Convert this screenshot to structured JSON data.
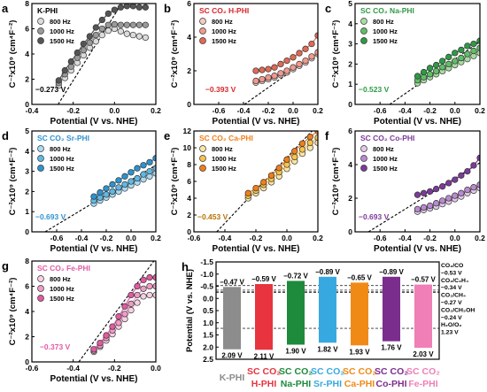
{
  "colors": {
    "gray": [
      "#dcdcdc",
      "#9a9a9a",
      "#555555"
    ],
    "red": [
      "#f6c9c2",
      "#f09a8c",
      "#e06a56"
    ],
    "green": [
      "#a9dca1",
      "#5fbf67",
      "#2f9a45"
    ],
    "blue": [
      "#a9dcf4",
      "#5fb9e6",
      "#2d93cf"
    ],
    "orange": [
      "#fbe5a7",
      "#f6c34c",
      "#ef7f1a"
    ],
    "purple": [
      "#e3c9ea",
      "#b98ad0",
      "#7c3a9a"
    ],
    "pink": [
      "#f8d0e3",
      "#ef9cc6",
      "#e25aa2"
    ]
  },
  "panels": [
    {
      "letter": "a",
      "title": "K-PHI",
      "title_color": "#000000",
      "color": "gray",
      "ylim": [
        0,
        8
      ],
      "yticks": [
        "0",
        "2",
        "4",
        "6",
        "8"
      ],
      "xlim": [
        -0.4,
        0.2
      ],
      "xticks": [
        "-0.4",
        "-0.2",
        "0.0",
        "0.2"
      ],
      "ylabel": "C⁻²x10⁹ (cm⁴F⁻²)",
      "xlabel": "Potential (V vs. NHE)",
      "legend": [
        "800 Hz",
        "1000 Hz",
        "1500 Hz"
      ],
      "intercept_label": "−0.273 V",
      "intercept_color": "#000000",
      "chart_data": {
        "type": "scatter",
        "x": [
          -0.27,
          -0.24,
          -0.21,
          -0.18,
          -0.15,
          -0.12,
          -0.09,
          -0.06,
          -0.03,
          0.0,
          0.03,
          0.06,
          0.09,
          0.12,
          0.15
        ],
        "series": [
          {
            "name": "800 Hz",
            "values": [
              1.5,
              2.1,
              2.7,
              3.3,
              3.9,
              4.5,
              5.0,
              5.5,
              5.85,
              6.0,
              5.8,
              5.6,
              5.5,
              5.4,
              5.3
            ]
          },
          {
            "name": "1000 Hz",
            "values": [
              1.7,
              2.4,
              3.0,
              3.7,
              4.3,
              4.9,
              5.5,
              6.0,
              6.3,
              6.35,
              6.3,
              6.3,
              6.3,
              6.3,
              6.3
            ]
          },
          {
            "name": "1500 Hz",
            "values": [
              1.9,
              2.7,
              3.4,
              4.1,
              4.8,
              5.4,
              6.1,
              6.7,
              7.2,
              7.5,
              7.7,
              7.8,
              7.8,
              7.7,
              7.7
            ]
          }
        ],
        "fit": {
          "x0": -0.273,
          "slope": 26
        }
      }
    },
    {
      "letter": "b",
      "title": "SC CO₂ H-PHI",
      "title_color": "#d8262a",
      "color": "red",
      "ylim": [
        0,
        6
      ],
      "yticks": [
        "0",
        "2",
        "4",
        "6"
      ],
      "xlim": [
        -0.8,
        0.2
      ],
      "xticks": [
        "-0.6",
        "-0.4",
        "-0.2",
        "0.0",
        "0.2"
      ],
      "ylabel": "C⁻²x10⁹ (cm⁴F⁻²)",
      "xlabel": "Potential (V vs. NHE)",
      "legend": [
        "800 Hz",
        "1000 Hz",
        "1500 Hz"
      ],
      "intercept_label": "−0.393 V",
      "intercept_color": "#d8262a",
      "chart_data": {
        "type": "scatter",
        "x": [
          -0.3,
          -0.25,
          -0.2,
          -0.15,
          -0.1,
          -0.05,
          0.0,
          0.05,
          0.1,
          0.15,
          0.2
        ],
        "series": [
          {
            "name": "800 Hz",
            "values": [
              1.3,
              1.4,
              1.5,
              1.6,
              1.75,
              1.9,
              2.1,
              2.3,
              2.5,
              2.75,
              3.0
            ]
          },
          {
            "name": "1000 Hz",
            "values": [
              1.4,
              1.5,
              1.6,
              1.7,
              1.85,
              2.0,
              2.2,
              2.4,
              2.6,
              2.85,
              3.1
            ]
          },
          {
            "name": "1500 Hz",
            "values": [
              2.0,
              2.05,
              2.1,
              2.2,
              2.4,
              2.6,
              2.8,
              3.05,
              3.3,
              3.6,
              4.1
            ]
          }
        ],
        "fit": {
          "x0": -0.393,
          "slope": 5.2
        }
      }
    },
    {
      "letter": "c",
      "title": "SC CO₂ Na-PHI",
      "title_color": "#2e9a47",
      "color": "green",
      "ylim": [
        0,
        5
      ],
      "yticks": [
        "0",
        "1",
        "2",
        "3",
        "4",
        "5"
      ],
      "xlim": [
        -0.8,
        0.2
      ],
      "xticks": [
        "-0.6",
        "-0.4",
        "-0.2",
        "0.0",
        "0.2"
      ],
      "ylabel": "C⁻²x10⁹ (cm⁴F⁻²)",
      "xlabel": "Potential (V vs. NHE)",
      "legend": [
        "800 Hz",
        "1000 Hz",
        "1500 Hz"
      ],
      "intercept_label": "−0.523 V",
      "intercept_color": "#2e9a47",
      "chart_data": {
        "type": "scatter",
        "x": [
          -0.3,
          -0.25,
          -0.2,
          -0.15,
          -0.1,
          -0.05,
          0.0,
          0.05,
          0.1,
          0.15,
          0.2
        ],
        "series": [
          {
            "name": "800 Hz",
            "values": [
              1.05,
              1.2,
              1.35,
              1.5,
              1.65,
              1.8,
              1.95,
              2.1,
              2.25,
              2.4,
              2.55
            ]
          },
          {
            "name": "1000 Hz",
            "values": [
              1.2,
              1.35,
              1.5,
              1.65,
              1.85,
              2.0,
              2.15,
              2.3,
              2.5,
              2.65,
              2.8
            ]
          },
          {
            "name": "1500 Hz",
            "values": [
              1.4,
              1.6,
              1.8,
              1.95,
              2.15,
              2.35,
              2.55,
              2.7,
              2.9,
              3.0,
              3.15
            ]
          }
        ],
        "fit": {
          "x0": -0.523,
          "slope": 4.3
        }
      }
    },
    {
      "letter": "d",
      "title": "SC CO₂ Sr-PHI",
      "title_color": "#2d93cf",
      "color": "blue",
      "ylim": [
        0,
        5
      ],
      "yticks": [
        "0",
        "1",
        "2",
        "3",
        "4",
        "5"
      ],
      "xlim": [
        -0.8,
        0.2
      ],
      "xticks": [
        "-0.6",
        "-0.4",
        "-0.2",
        "0.0",
        "0.2"
      ],
      "ylabel": "C⁻²x10⁹ (cm⁴F⁻²)",
      "xlabel": "Potential (V vs. NHE)",
      "legend": [
        "800 Hz",
        "1000 Hz",
        "1500 Hz"
      ],
      "intercept_label": "−0.693 V",
      "intercept_color": "#2d93cf",
      "chart_data": {
        "type": "scatter",
        "x": [
          -0.3,
          -0.25,
          -0.2,
          -0.15,
          -0.1,
          -0.05,
          0.0,
          0.05,
          0.1,
          0.15,
          0.2
        ],
        "series": [
          {
            "name": "800 Hz",
            "values": [
              1.4,
              1.55,
              1.7,
              1.85,
              2.0,
              2.15,
              2.3,
              2.45,
              2.6,
              2.75,
              2.9
            ]
          },
          {
            "name": "1000 Hz",
            "values": [
              1.55,
              1.7,
              1.85,
              2.0,
              2.2,
              2.35,
              2.5,
              2.65,
              2.85,
              3.0,
              3.15
            ]
          },
          {
            "name": "1500 Hz",
            "values": [
              1.75,
              1.95,
              2.15,
              2.35,
              2.55,
              2.75,
              2.95,
              3.15,
              3.3,
              3.45,
              3.65
            ]
          }
        ],
        "fit": {
          "x0": -0.693,
          "slope": 3.7
        }
      }
    },
    {
      "letter": "e",
      "title": "SC CO₂ Ca-PHI",
      "title_color": "#ef7f1a",
      "color": "orange",
      "ylim": [
        0,
        12
      ],
      "yticks": [
        "0",
        "2",
        "4",
        "6",
        "8",
        "10",
        "12"
      ],
      "xlim": [
        -0.6,
        0.2
      ],
      "xticks": [
        "-0.6",
        "-0.4",
        "-0.2",
        "0.0",
        "0.2"
      ],
      "ylabel": "C⁻²x10⁹ (cm⁴F⁻²)",
      "xlabel": "Potential (V vs. NHE)",
      "legend": [
        "800 Hz",
        "1000 Hz",
        "1500 Hz"
      ],
      "intercept_label": "−0.453 V",
      "intercept_color": "#b77300",
      "chart_data": {
        "type": "scatter",
        "x": [
          -0.25,
          -0.2,
          -0.15,
          -0.1,
          -0.05,
          0.0,
          0.05,
          0.1,
          0.15,
          0.2
        ],
        "series": [
          {
            "name": "800 Hz",
            "values": [
              4.0,
              4.6,
              5.2,
              5.9,
              6.6,
              7.5,
              8.4,
              9.3,
              10.0,
              10.6
            ]
          },
          {
            "name": "1000 Hz",
            "values": [
              4.3,
              4.9,
              5.6,
              6.3,
              7.1,
              8.0,
              8.9,
              9.8,
              10.6,
              11.2
            ]
          },
          {
            "name": "1500 Hz",
            "values": [
              4.6,
              5.2,
              5.9,
              6.7,
              7.6,
              8.6,
              9.6,
              10.5,
              11.3,
              12.0
            ]
          }
        ],
        "fit": {
          "x0": -0.453,
          "slope": 19.5
        }
      }
    },
    {
      "letter": "f",
      "title": "SC CO₂ Co-PHI",
      "title_color": "#7c3a9a",
      "color": "purple",
      "ylim": [
        0,
        6
      ],
      "yticks": [
        "0",
        "2",
        "4",
        "6"
      ],
      "xlim": [
        -0.8,
        0.2
      ],
      "xticks": [
        "-0.6",
        "-0.4",
        "-0.2",
        "0.0",
        "0.2"
      ],
      "ylabel": "C⁻²x10⁹ (cm⁴F⁻²)",
      "xlabel": "Potential (V vs. NHE)",
      "legend": [
        "800 Hz",
        "1000 Hz",
        "1500 Hz"
      ],
      "intercept_label": "−0.693 V",
      "intercept_color": "#7c3a9a",
      "chart_data": {
        "type": "scatter",
        "x": [
          -0.3,
          -0.25,
          -0.2,
          -0.15,
          -0.1,
          -0.05,
          0.0,
          0.05,
          0.1,
          0.15,
          0.2
        ],
        "series": [
          {
            "name": "800 Hz",
            "values": [
              1.2,
              1.3,
              1.4,
              1.5,
              1.65,
              1.8,
              1.95,
              2.1,
              2.3,
              2.45,
              2.6
            ]
          },
          {
            "name": "1000 Hz",
            "values": [
              1.35,
              1.45,
              1.55,
              1.7,
              1.85,
              2.0,
              2.15,
              2.3,
              2.5,
              2.65,
              2.8
            ]
          },
          {
            "name": "1500 Hz",
            "values": [
              2.2,
              2.3,
              2.4,
              2.55,
              2.7,
              2.9,
              3.1,
              3.35,
              3.6,
              3.95,
              4.4
            ]
          }
        ],
        "fit": {
          "x0": -0.693,
          "slope": 4.6
        }
      }
    },
    {
      "letter": "g",
      "title": "SC CO₂ Fe-PHI",
      "title_color": "#e25aa2",
      "color": "pink",
      "ylim": [
        0,
        8
      ],
      "yticks": [
        "0",
        "2",
        "4",
        "6",
        "8"
      ],
      "xlim": [
        -0.6,
        0.0
      ],
      "xticks": [
        "-0.6",
        "-0.4",
        "-0.2",
        "0.0"
      ],
      "ylabel": "C⁻²x10⁹ (cm⁴F⁻²)",
      "xlabel": "Potential (V vs. NHE)",
      "legend": [
        "800 Hz",
        "1000 Hz",
        "1500 Hz"
      ],
      "intercept_label": "−0.373 V",
      "intercept_color": "#e25aa2",
      "chart_data": {
        "type": "scatter",
        "x": [
          -0.3,
          -0.27,
          -0.24,
          -0.21,
          -0.18,
          -0.15,
          -0.12,
          -0.09,
          -0.06,
          -0.03,
          0.0
        ],
        "series": [
          {
            "name": "800 Hz",
            "values": [
              0.8,
              1.2,
              1.7,
              2.2,
              2.8,
              3.4,
              4.1,
              4.7,
              5.2,
              5.3,
              5.3
            ]
          },
          {
            "name": "1000 Hz",
            "values": [
              0.9,
              1.3,
              1.9,
              2.5,
              3.1,
              3.8,
              4.6,
              5.3,
              5.8,
              6.0,
              6.0
            ]
          },
          {
            "name": "1500 Hz",
            "values": [
              1.0,
              1.5,
              2.1,
              2.8,
              3.6,
              4.4,
              5.3,
              6.0,
              6.5,
              6.7,
              6.7
            ]
          }
        ],
        "fit": {
          "x0": -0.373,
          "slope": 22
        }
      }
    }
  ],
  "panel_h": {
    "letter": "h",
    "ylabel": "Potential (V vs. NHE)",
    "ylim": [
      -1.5,
      2.5
    ],
    "yticks": [
      "-1.5",
      "-1.0",
      "-0.5",
      "0.0",
      "0.5",
      "1.0",
      "1.5",
      "2.0",
      "2.5"
    ],
    "levels": [
      "CO₂/CO",
      "−0.53 V",
      "CO₂/C₂H₄",
      "−0.34 V",
      "CO₂/CH₄",
      "−0.27 V",
      "CO₂/CH₃OH",
      "−0.24 V",
      "H₂O/O₂",
      "1.23 V"
    ],
    "chart_data": {
      "type": "bar",
      "categories": [
        {
          "line1": "K-PHI",
          "line2": ""
        },
        {
          "line1": "SC CO₂",
          "line2": "H-PHI"
        },
        {
          "line1": "SC CO₂",
          "line2": "Na-PHI"
        },
        {
          "line1": "SC CO₂",
          "line2": "Sr-PHI"
        },
        {
          "line1": "SC CO₂",
          "line2": "Ca-PHI"
        },
        {
          "line1": "SC CO₂",
          "line2": "Co-PHI"
        },
        {
          "line1": "SC CO₂",
          "line2": "Fe-PHI"
        }
      ],
      "cb": [
        -0.47,
        -0.59,
        -0.72,
        -0.89,
        -0.65,
        -0.89,
        -0.57
      ],
      "vb": [
        2.09,
        2.11,
        1.9,
        1.82,
        1.93,
        1.76,
        2.03
      ],
      "cb_labels": [
        "−0.47 V",
        "−0.59 V",
        "−0.72 V",
        "−0.89 V",
        "−0.65 V",
        "−0.89 V",
        "−0.57 V"
      ],
      "vb_labels": [
        "2.09 V",
        "2.11 V",
        "1.90 V",
        "1.82 V",
        "1.93 V",
        "1.76 V",
        "2.03 V"
      ],
      "bar_colors": [
        "#8c8c8c",
        "#e8343f",
        "#1e8a3c",
        "#38a9e0",
        "#f08a17",
        "#7b2d8e",
        "#ef7fb6"
      ],
      "label_colors": [
        "#8c8c8c",
        "#e8343f",
        "#1e8a3c",
        "#38a9e0",
        "#f08a17",
        "#7b2d8e",
        "#ef7fb6"
      ],
      "reference_lines": [
        -0.53,
        -0.34,
        -0.27,
        -0.24,
        1.23
      ]
    }
  }
}
